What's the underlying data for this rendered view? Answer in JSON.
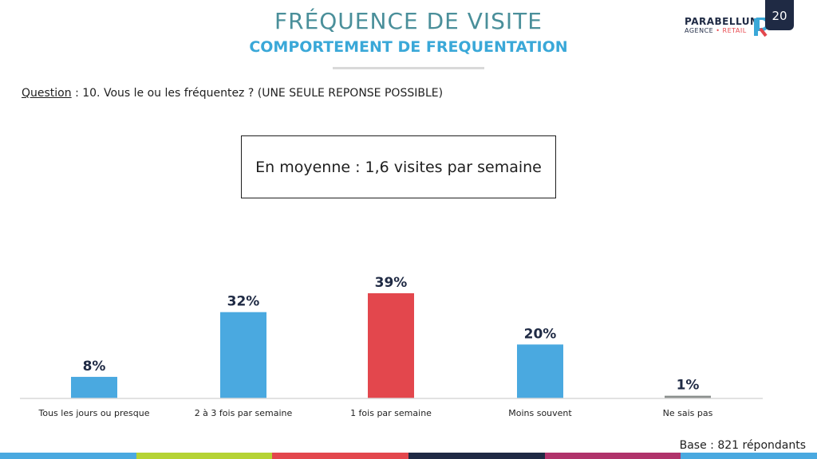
{
  "header": {
    "title": "FRÉQUENCE DE VISITE",
    "subtitle": "COMPORTEMENT DE FREQUENTATION",
    "page_number": "20"
  },
  "logo": {
    "name": "PARABELLUM",
    "sub_left": "AGENCE",
    "sub_sep": " • ",
    "sub_right": "RETAIL"
  },
  "question": {
    "label": "Question",
    "text": " : 10. Vous le ou les fréquentez ? (UNE SEULE REPONSE POSSIBLE)"
  },
  "highlight": "En moyenne : 1,6 visites par semaine",
  "footer": {
    "base": "Base : 821 répondants"
  },
  "colors": {
    "bar_default": "#4aa9e0",
    "bar_highlight": "#e3474d",
    "bar_muted": "#8a8f8d",
    "strip": [
      "#4aa9e0",
      "#b5d334",
      "#e3474d",
      "#1f2a44",
      "#b0336b",
      "#4aa9e0"
    ]
  },
  "chart_data": {
    "type": "bar",
    "categories": [
      "Tous les jours ou presque",
      "2 à 3 fois par semaine",
      "1 fois par semaine",
      "Moins souvent",
      "Ne sais pas"
    ],
    "values": [
      8,
      32,
      39,
      20,
      1
    ],
    "value_labels": [
      "8%",
      "32%",
      "39%",
      "20%",
      "1%"
    ],
    "highlight_index": 2,
    "muted_index": 4,
    "unit": "%",
    "ylim": [
      0,
      39
    ],
    "grid": false,
    "legend": "none"
  }
}
